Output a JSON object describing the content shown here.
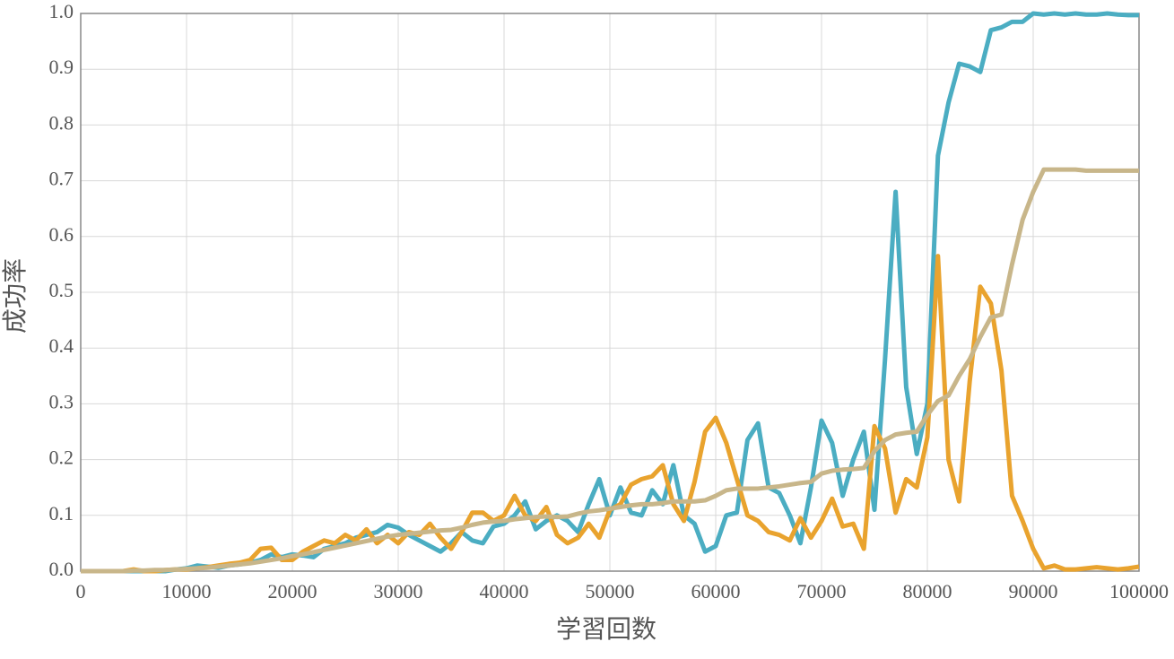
{
  "chart_data": {
    "type": "line",
    "xlabel": "学習回数",
    "ylabel": "成功率",
    "x": [
      0,
      1000,
      2000,
      3000,
      4000,
      5000,
      6000,
      7000,
      8000,
      9000,
      10000,
      11000,
      12000,
      13000,
      14000,
      15000,
      16000,
      17000,
      18000,
      19000,
      20000,
      21000,
      22000,
      23000,
      24000,
      25000,
      26000,
      27000,
      28000,
      29000,
      30000,
      31000,
      32000,
      33000,
      34000,
      35000,
      36000,
      37000,
      38000,
      39000,
      40000,
      41000,
      42000,
      43000,
      44000,
      45000,
      46000,
      47000,
      48000,
      49000,
      50000,
      51000,
      52000,
      53000,
      54000,
      55000,
      56000,
      57000,
      58000,
      59000,
      60000,
      61000,
      62000,
      63000,
      64000,
      65000,
      66000,
      67000,
      68000,
      69000,
      70000,
      71000,
      72000,
      73000,
      74000,
      75000,
      76000,
      77000,
      78000,
      79000,
      80000,
      81000,
      82000,
      83000,
      84000,
      85000,
      86000,
      87000,
      88000,
      89000,
      90000,
      91000,
      92000,
      93000,
      94000,
      95000,
      96000,
      97000,
      98000,
      99000,
      100000
    ],
    "series": [
      {
        "color": "#4badc2",
        "values": [
          0,
          0,
          0,
          0,
          0,
          0,
          0,
          0,
          0,
          0.003,
          0.005,
          0.01,
          0.008,
          0.006,
          0.01,
          0.012,
          0.015,
          0.02,
          0.03,
          0.025,
          0.03,
          0.028,
          0.025,
          0.04,
          0.045,
          0.05,
          0.06,
          0.065,
          0.07,
          0.083,
          0.078,
          0.065,
          0.055,
          0.045,
          0.035,
          0.05,
          0.07,
          0.055,
          0.05,
          0.08,
          0.085,
          0.1,
          0.125,
          0.075,
          0.09,
          0.1,
          0.09,
          0.07,
          0.12,
          0.165,
          0.1,
          0.15,
          0.105,
          0.1,
          0.145,
          0.12,
          0.19,
          0.1,
          0.085,
          0.035,
          0.045,
          0.1,
          0.105,
          0.235,
          0.265,
          0.15,
          0.14,
          0.1,
          0.05,
          0.15,
          0.27,
          0.23,
          0.135,
          0.2,
          0.25,
          0.11,
          0.38,
          0.68,
          0.33,
          0.21,
          0.3,
          0.745,
          0.84,
          0.91,
          0.905,
          0.895,
          0.97,
          0.975,
          0.985,
          0.985,
          1.0,
          0.998,
          1.0,
          0.998,
          1.0,
          0.998,
          0.998,
          1.0,
          0.998,
          0.997,
          0.997
        ]
      },
      {
        "color": "#e9a32e",
        "values": [
          0,
          0,
          0,
          0,
          0,
          0.003,
          0,
          0,
          0.002,
          0.003,
          0.003,
          0.005,
          0.007,
          0.01,
          0.013,
          0.015,
          0.02,
          0.04,
          0.042,
          0.02,
          0.02,
          0.035,
          0.045,
          0.055,
          0.05,
          0.065,
          0.055,
          0.075,
          0.05,
          0.065,
          0.05,
          0.07,
          0.065,
          0.085,
          0.06,
          0.04,
          0.07,
          0.105,
          0.105,
          0.09,
          0.1,
          0.135,
          0.1,
          0.09,
          0.115,
          0.065,
          0.05,
          0.06,
          0.085,
          0.06,
          0.11,
          0.12,
          0.155,
          0.165,
          0.17,
          0.19,
          0.12,
          0.09,
          0.16,
          0.25,
          0.275,
          0.23,
          0.165,
          0.1,
          0.09,
          0.07,
          0.065,
          0.055,
          0.095,
          0.06,
          0.09,
          0.13,
          0.08,
          0.085,
          0.04,
          0.26,
          0.22,
          0.105,
          0.165,
          0.15,
          0.24,
          0.565,
          0.2,
          0.125,
          0.34,
          0.51,
          0.48,
          0.36,
          0.135,
          0.09,
          0.04,
          0.005,
          0.01,
          0.003,
          0.003,
          0.005,
          0.007,
          0.005,
          0.003,
          0.005,
          0.008
        ]
      },
      {
        "color": "#c8b68a",
        "values": [
          0,
          0,
          0,
          0,
          0,
          0.001,
          0.001,
          0.002,
          0.002,
          0.003,
          0.004,
          0.005,
          0.006,
          0.008,
          0.01,
          0.012,
          0.014,
          0.017,
          0.02,
          0.023,
          0.027,
          0.03,
          0.034,
          0.038,
          0.042,
          0.046,
          0.05,
          0.054,
          0.058,
          0.062,
          0.065,
          0.067,
          0.069,
          0.071,
          0.073,
          0.074,
          0.078,
          0.083,
          0.087,
          0.089,
          0.09,
          0.093,
          0.095,
          0.097,
          0.098,
          0.097,
          0.098,
          0.103,
          0.107,
          0.109,
          0.112,
          0.115,
          0.118,
          0.12,
          0.12,
          0.122,
          0.125,
          0.125,
          0.125,
          0.127,
          0.135,
          0.145,
          0.148,
          0.148,
          0.148,
          0.15,
          0.152,
          0.155,
          0.158,
          0.16,
          0.175,
          0.18,
          0.182,
          0.183,
          0.185,
          0.215,
          0.235,
          0.245,
          0.248,
          0.25,
          0.28,
          0.305,
          0.315,
          0.35,
          0.38,
          0.42,
          0.455,
          0.46,
          0.55,
          0.63,
          0.68,
          0.72,
          0.72,
          0.72,
          0.72,
          0.718,
          0.718,
          0.718,
          0.718,
          0.718,
          0.718
        ]
      }
    ],
    "xlim": [
      0,
      100000
    ],
    "xticks": [
      0,
      10000,
      20000,
      30000,
      40000,
      50000,
      60000,
      70000,
      80000,
      90000,
      100000
    ],
    "ylim": [
      0,
      1
    ],
    "yticks": [
      {
        "value": 0,
        "label": "0.0"
      },
      0.1,
      0.2,
      0.3,
      0.4,
      0.5,
      0.6,
      0.7,
      0.8,
      0.9,
      {
        "value": 1,
        "label": "1.0"
      }
    ],
    "grid": true
  }
}
